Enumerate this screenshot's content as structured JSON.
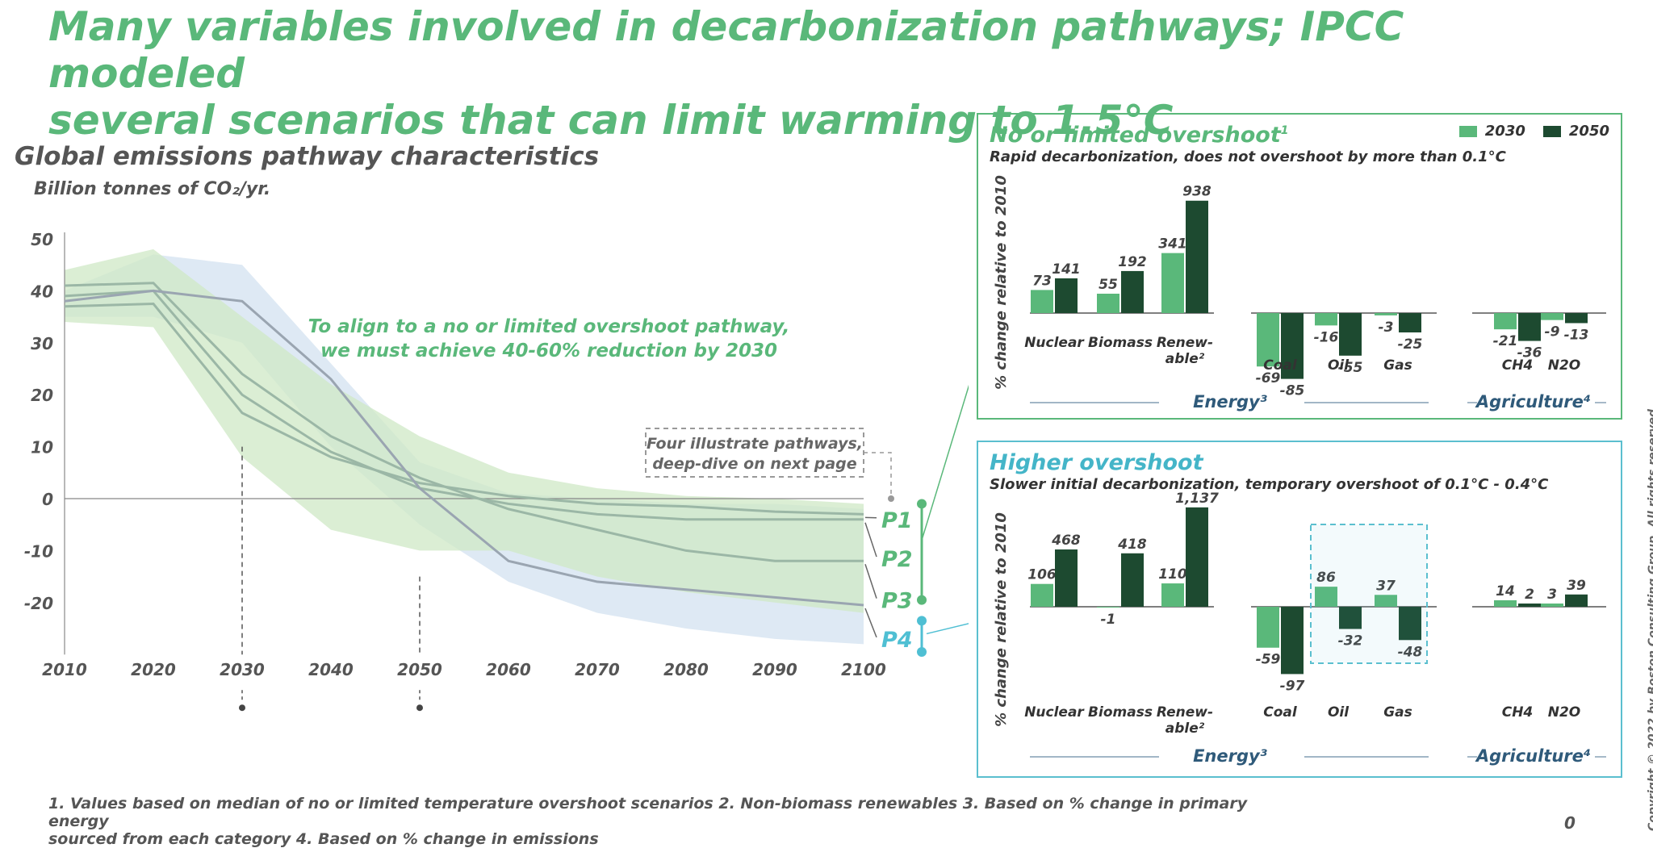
{
  "title": {
    "line1": "Many variables involved in decarbonization pathways; IPCC modeled",
    "line2": "several scenarios that can limit warming to 1.5°C"
  },
  "left_chart": {
    "title": "Global emissions pathway characteristics",
    "unit": "Billion tonnes of CO₂/yr.",
    "callout": [
      "To align to a no or limited overshoot pathway,",
      "we must achieve 40-60% reduction by 2030"
    ],
    "box_note": [
      "Four illustrate pathways,",
      "deep-dive on next page"
    ],
    "colors": {
      "p123": "#5ab87a",
      "p4": "#4fbfd3",
      "band_green": "#cfe8c6",
      "band_blue": "#d6e4f1",
      "line": "#9bb7a6"
    }
  },
  "panel1": {
    "title": "No or limited overshoot",
    "title_sup": "1",
    "subtitle": "Rapid decarbonization, does not overshoot by more than 0.1°C"
  },
  "panel2": {
    "title": "Higher overshoot",
    "subtitle": "Slower initial decarbonization, temporary overshoot of 0.1°C - 0.4°C"
  },
  "legend": {
    "a": "2030",
    "b": "2050",
    "color_a": "#5ab87a",
    "color_b": "#1d4a30"
  },
  "footnote": [
    "1. Values based on median of no or limited temperature overshoot scenarios  2. Non-biomass renewables  3. Based on % change in primary energy",
    "sourced from each category  4. Based on % change in emissions"
  ],
  "page_number": "0",
  "copyright": "Copyright © 2022 by Boston Consulting Group. All rights reserved.",
  "chart_data": [
    {
      "type": "line",
      "title": "Global emissions pathway characteristics",
      "ylabel": "Billion tonnes of CO₂/yr.",
      "x": [
        2010,
        2020,
        2030,
        2040,
        2050,
        2060,
        2070,
        2080,
        2090,
        2100
      ],
      "yticks": [
        50,
        40,
        30,
        20,
        10,
        0,
        -10,
        -20
      ],
      "ylim": [
        -30,
        50
      ],
      "series": [
        {
          "name": "P1",
          "values": [
            37,
            37.5,
            16.5,
            8,
            3,
            0.5,
            -1,
            -1.5,
            -2.5,
            -3
          ]
        },
        {
          "name": "P2",
          "values": [
            39,
            40,
            20,
            9,
            2,
            -1,
            -3,
            -4,
            -4,
            -4
          ]
        },
        {
          "name": "P3",
          "values": [
            41,
            41.5,
            24,
            12,
            4,
            -2,
            -6,
            -10,
            -12,
            -12
          ]
        },
        {
          "name": "P4",
          "values": [
            38,
            40,
            38,
            23,
            2,
            -12,
            -16,
            -17.5,
            -19,
            -20.5
          ]
        }
      ],
      "band_green": {
        "upper": [
          44,
          48,
          35,
          22,
          12,
          5,
          2,
          0.5,
          0,
          -1
        ],
        "lower": [
          34,
          33,
          8,
          -6,
          -10,
          -10,
          -15,
          -18,
          -20,
          -22
        ]
      },
      "band_blue": {
        "upper": [
          40,
          47,
          45,
          26,
          7,
          1,
          0,
          -1,
          -1,
          -2
        ],
        "lower": [
          35,
          35,
          30,
          10,
          -5,
          -16,
          -22,
          -25,
          -27,
          -28
        ]
      },
      "labels": [
        "P1",
        "P2",
        "P3",
        "P4"
      ]
    },
    {
      "type": "bar",
      "title": "No or limited overshoot",
      "ylabel": "% change relative to 2010",
      "series_names": [
        "2030",
        "2050"
      ],
      "categories": [
        "Nuclear",
        "Biomass",
        "Renew-able²",
        "Coal",
        "Oil",
        "Gas",
        "CH4",
        "N2O"
      ],
      "values_2030": [
        73,
        55,
        341,
        -69,
        -16,
        -3,
        -21,
        -9
      ],
      "values_2050": [
        141,
        192,
        938,
        -85,
        -55,
        -25,
        -36,
        -13
      ],
      "value_labels_2030": [
        "73",
        "55",
        "341",
        "-69",
        "-16",
        "-3",
        "-21",
        "-9"
      ],
      "value_labels_2050": [
        "141",
        "192",
        "938",
        "-85",
        "-55",
        "-25",
        "-36",
        "-13"
      ],
      "groups": [
        "Energy³",
        "Agriculture⁴"
      ]
    },
    {
      "type": "bar",
      "title": "Higher overshoot",
      "ylabel": "% change relative to 2010",
      "series_names": [
        "2030",
        "2050"
      ],
      "categories": [
        "Nuclear",
        "Biomass",
        "Renew-able²",
        "Coal",
        "Oil",
        "Gas",
        "CH4",
        "N2O"
      ],
      "values_2030": [
        106,
        -1,
        110,
        -59,
        86,
        37,
        14,
        3
      ],
      "values_2050": [
        468,
        418,
        1137,
        -97,
        -32,
        -48,
        2,
        39
      ],
      "value_labels_2030": [
        "106",
        "-1",
        "110",
        "-59",
        "86",
        "37",
        "14",
        "3"
      ],
      "value_labels_2050": [
        "468",
        "418",
        "1,137",
        "-97",
        "-32",
        "-48",
        "2",
        "39"
      ],
      "groups": [
        "Energy³",
        "Agriculture⁴"
      ]
    }
  ]
}
